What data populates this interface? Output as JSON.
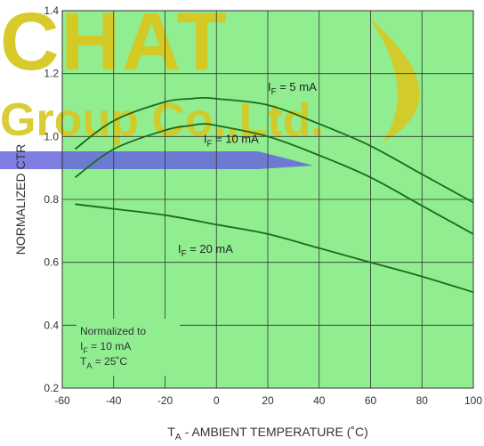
{
  "chart_data": {
    "type": "line",
    "title": "",
    "xlabel": "T_A - AMBIENT TEMPERATURE (˚C)",
    "xlabel_parts": {
      "sym": "T",
      "sub": "A",
      "rest": " - AMBIENT TEMPERATURE (˚C)"
    },
    "ylabel": "NORMALIZED CTR",
    "xlim": [
      -60,
      100
    ],
    "ylim": [
      0.2,
      1.4
    ],
    "x_ticks": [
      -60,
      -40,
      -20,
      0,
      20,
      40,
      60,
      80,
      100
    ],
    "y_ticks": [
      0.2,
      0.4,
      0.6,
      0.8,
      1.0,
      1.2,
      1.4
    ],
    "x_tick_labels": [
      "-60",
      "-40",
      "-20",
      "0",
      "20",
      "40",
      "60",
      "80",
      "100"
    ],
    "y_tick_labels": [
      "0.2",
      "0.4",
      "0.6",
      "0.8",
      "1.0",
      "1.2",
      "1.4"
    ],
    "grid": true,
    "series": [
      {
        "name": "I_F = 5 mA",
        "label_parts": {
          "sym": "I",
          "sub": "F",
          "rest": " = 5 mA"
        },
        "x": [
          -55,
          -40,
          -20,
          -10,
          -5,
          0,
          20,
          40,
          60,
          80,
          100
        ],
        "y": [
          0.96,
          1.05,
          1.11,
          1.12,
          1.123,
          1.12,
          1.1,
          1.04,
          0.97,
          0.88,
          0.79
        ]
      },
      {
        "name": "I_F = 10 mA",
        "label_parts": {
          "sym": "I",
          "sub": "F",
          "rest": " = 10 mA"
        },
        "x": [
          -55,
          -40,
          -20,
          -10,
          -5,
          0,
          20,
          40,
          60,
          80,
          100
        ],
        "y": [
          0.87,
          0.96,
          1.02,
          1.035,
          1.04,
          1.035,
          1.0,
          0.94,
          0.87,
          0.78,
          0.69
        ]
      },
      {
        "name": "I_F = 20 mA",
        "label_parts": {
          "sym": "I",
          "sub": "F",
          "rest": " = 20 mA"
        },
        "x": [
          -55,
          -40,
          -20,
          0,
          20,
          40,
          60,
          80,
          100
        ],
        "y": [
          0.785,
          0.77,
          0.75,
          0.72,
          0.69,
          0.645,
          0.6,
          0.555,
          0.505
        ]
      }
    ],
    "annotation": {
      "line1": "Normalized to",
      "line2": {
        "sym": "I",
        "sub": "F",
        "rest": " = 10 mA"
      },
      "line3": {
        "sym": "T",
        "sub": "A",
        "rest": " = 25˚C"
      }
    },
    "watermark": "CHAT Group Co., Ltd.",
    "colors": {
      "background": "#90EE90",
      "grid": "#333333",
      "curve": "#1a6b1a",
      "curve_tail": "#707070",
      "watermark_text": "#D8C820",
      "watermark_band": "#6666DD"
    }
  }
}
